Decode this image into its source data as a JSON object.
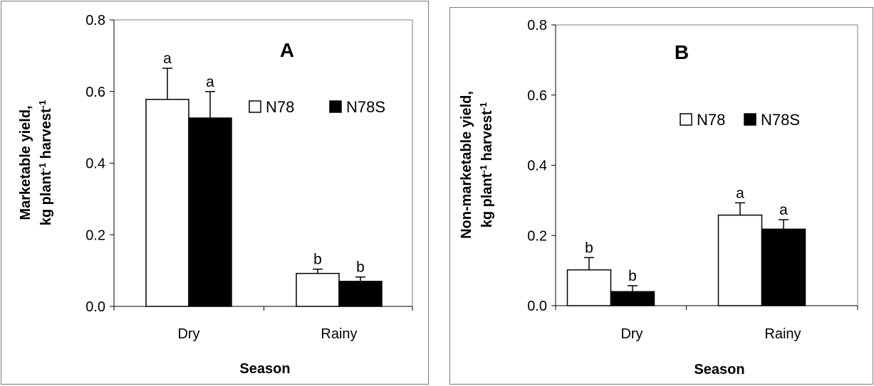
{
  "chart_data": [
    {
      "type": "bar",
      "panel_label": "A",
      "categories": [
        "Dry",
        "Rainy"
      ],
      "series": [
        {
          "name": "N78",
          "color": "#ffffff",
          "values": [
            0.578,
            0.092
          ],
          "errors": [
            0.087,
            0.012
          ],
          "letters": [
            "a",
            "b"
          ]
        },
        {
          "name": "N78S",
          "color": "#000000",
          "values": [
            0.526,
            0.07
          ],
          "errors": [
            0.074,
            0.012
          ],
          "letters": [
            "a",
            "b"
          ]
        }
      ],
      "xlabel": "Season",
      "ylabel": "Marketable yield,",
      "ylabel_line2": "kg plant",
      "ylabel_sup1": "-1",
      "ylabel_mid": " harvest",
      "ylabel_sup2": "-1",
      "ylim": [
        0,
        0.8
      ],
      "yticks": [
        "0.0",
        "0.2",
        "0.4",
        "0.6",
        "0.8"
      ],
      "legend_position": "top-right",
      "grid": false
    },
    {
      "type": "bar",
      "panel_label": "B",
      "categories": [
        "Dry",
        "Rainy"
      ],
      "series": [
        {
          "name": "N78",
          "color": "#ffffff",
          "values": [
            0.102,
            0.258
          ],
          "errors": [
            0.035,
            0.035
          ],
          "letters": [
            "b",
            "a"
          ]
        },
        {
          "name": "N78S",
          "color": "#000000",
          "values": [
            0.04,
            0.218
          ],
          "errors": [
            0.017,
            0.027
          ],
          "letters": [
            "b",
            "a"
          ]
        }
      ],
      "xlabel": "Season",
      "ylabel": "Non-marketable yield,",
      "ylabel_line2": "kg plant",
      "ylabel_sup1": "-1",
      "ylabel_mid": " harvest",
      "ylabel_sup2": "-1",
      "ylim": [
        0,
        0.8
      ],
      "yticks": [
        "0.0",
        "0.2",
        "0.4",
        "0.6",
        "0.8"
      ],
      "legend_position": "top-right",
      "grid": false
    }
  ]
}
